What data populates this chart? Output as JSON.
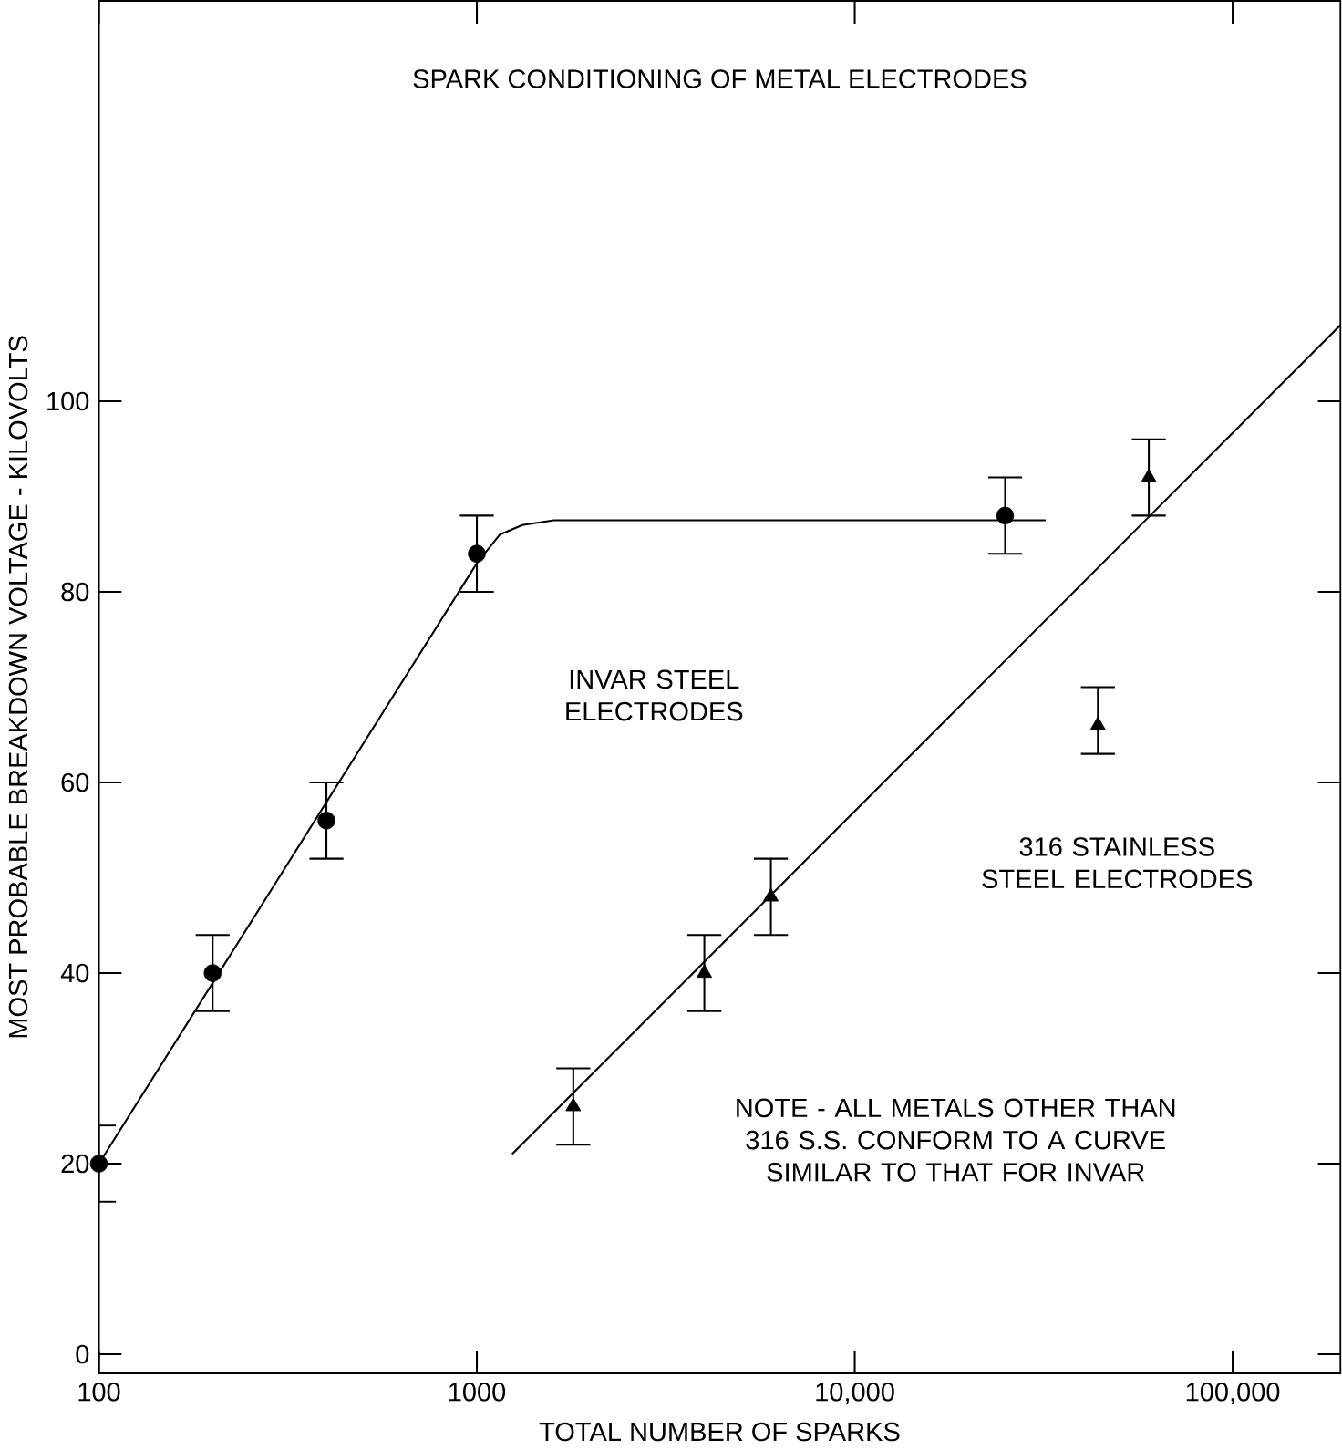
{
  "chart_data": {
    "type": "scatter",
    "title": "SPARK CONDITIONING OF METAL ELECTRODES",
    "xlabel": "TOTAL NUMBER OF SPARKS",
    "ylabel": "MOST PROBABLE BREAKDOWN VOLTAGE - KILOVOLTS",
    "log": "x",
    "xlim": [
      100,
      193000
    ],
    "ylim": [
      -2,
      142
    ],
    "xticks": [
      100,
      1000,
      {
        "value": 10000,
        "label": "10,000"
      },
      {
        "value": 100000,
        "label": "100,000"
      }
    ],
    "yticks": [
      0,
      20,
      40,
      60,
      80,
      100
    ],
    "series": [
      {
        "marker": "circle",
        "color": "#000000",
        "x": [
          100,
          200,
          400,
          1000,
          25000
        ],
        "values": [
          20,
          40,
          56,
          84,
          88
        ],
        "errors": [
          [
            16,
            24
          ],
          [
            36,
            44
          ],
          [
            52,
            60
          ],
          [
            80,
            88
          ],
          [
            84,
            92
          ]
        ]
      },
      {
        "type": "line",
        "marker": "none",
        "line_style": "solid",
        "color": "#000000",
        "x": [
          100,
          1000,
          1150,
          1320,
          1600,
          32000
        ],
        "values": [
          20,
          83,
          86,
          87,
          87.5,
          87.5
        ]
      },
      {
        "marker": "triangle",
        "color": "#000000",
        "x": [
          1800,
          4000,
          6000,
          44000,
          60000
        ],
        "values": [
          26,
          40,
          48,
          66,
          92
        ],
        "errors": [
          [
            22,
            30
          ],
          [
            36,
            44
          ],
          [
            44,
            52
          ],
          [
            63,
            70
          ],
          [
            88,
            96
          ]
        ]
      },
      {
        "type": "line",
        "marker": "none",
        "line_style": "solid",
        "color": "#000000",
        "x": [
          1240,
          193000
        ],
        "values": [
          21,
          108
        ]
      }
    ],
    "annotations": [
      "INVAR STEEL ELECTRODES",
      "316 STAINLESS STEEL ELECTRODES",
      "NOTE - ALL METALS OTHER THAN 316 S.S. CONFORM TO A CURVE SIMILAR TO THAT FOR INVAR"
    ]
  }
}
